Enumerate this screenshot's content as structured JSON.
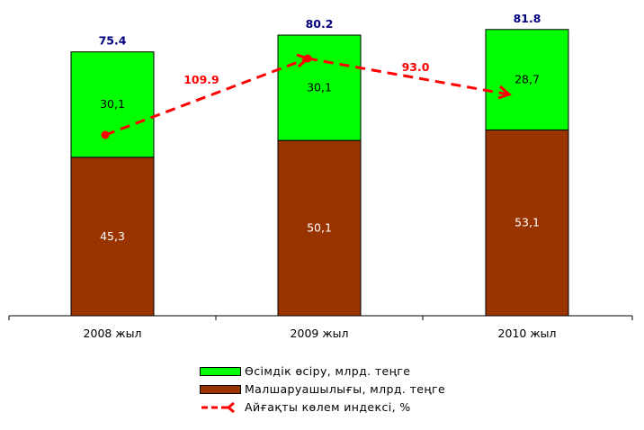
{
  "chart_data": {
    "type": "bar",
    "stacked": true,
    "categories": [
      "2008 жыл",
      "2009 жыл",
      "2010 жыл"
    ],
    "series": [
      {
        "name": "Малшаруашылығы, млрд. теңге",
        "values": [
          45.3,
          50.1,
          53.1
        ],
        "value_labels": [
          "45,3",
          "50,1",
          "53,1"
        ],
        "color": "#993300"
      },
      {
        "name": "Өсімдік өсіру, млрд. теңге",
        "values": [
          30.1,
          30.1,
          28.7
        ],
        "value_labels": [
          "30,1",
          "30,1",
          "28,7"
        ],
        "color": "#00FF00"
      }
    ],
    "totals": {
      "values": [
        75.4,
        80.2,
        81.8
      ],
      "labels": [
        "75.4",
        "80.2",
        "81.8"
      ],
      "color": "#000080"
    },
    "index_line": {
      "name": "Айғақты көлем индексі, %",
      "type": "line",
      "style": "dashed",
      "color": "#FF0000",
      "point_labels": [
        "109.9",
        "93.0"
      ]
    },
    "ylim": [
      0,
      85
    ],
    "grid": false,
    "legend_position": "bottom"
  }
}
